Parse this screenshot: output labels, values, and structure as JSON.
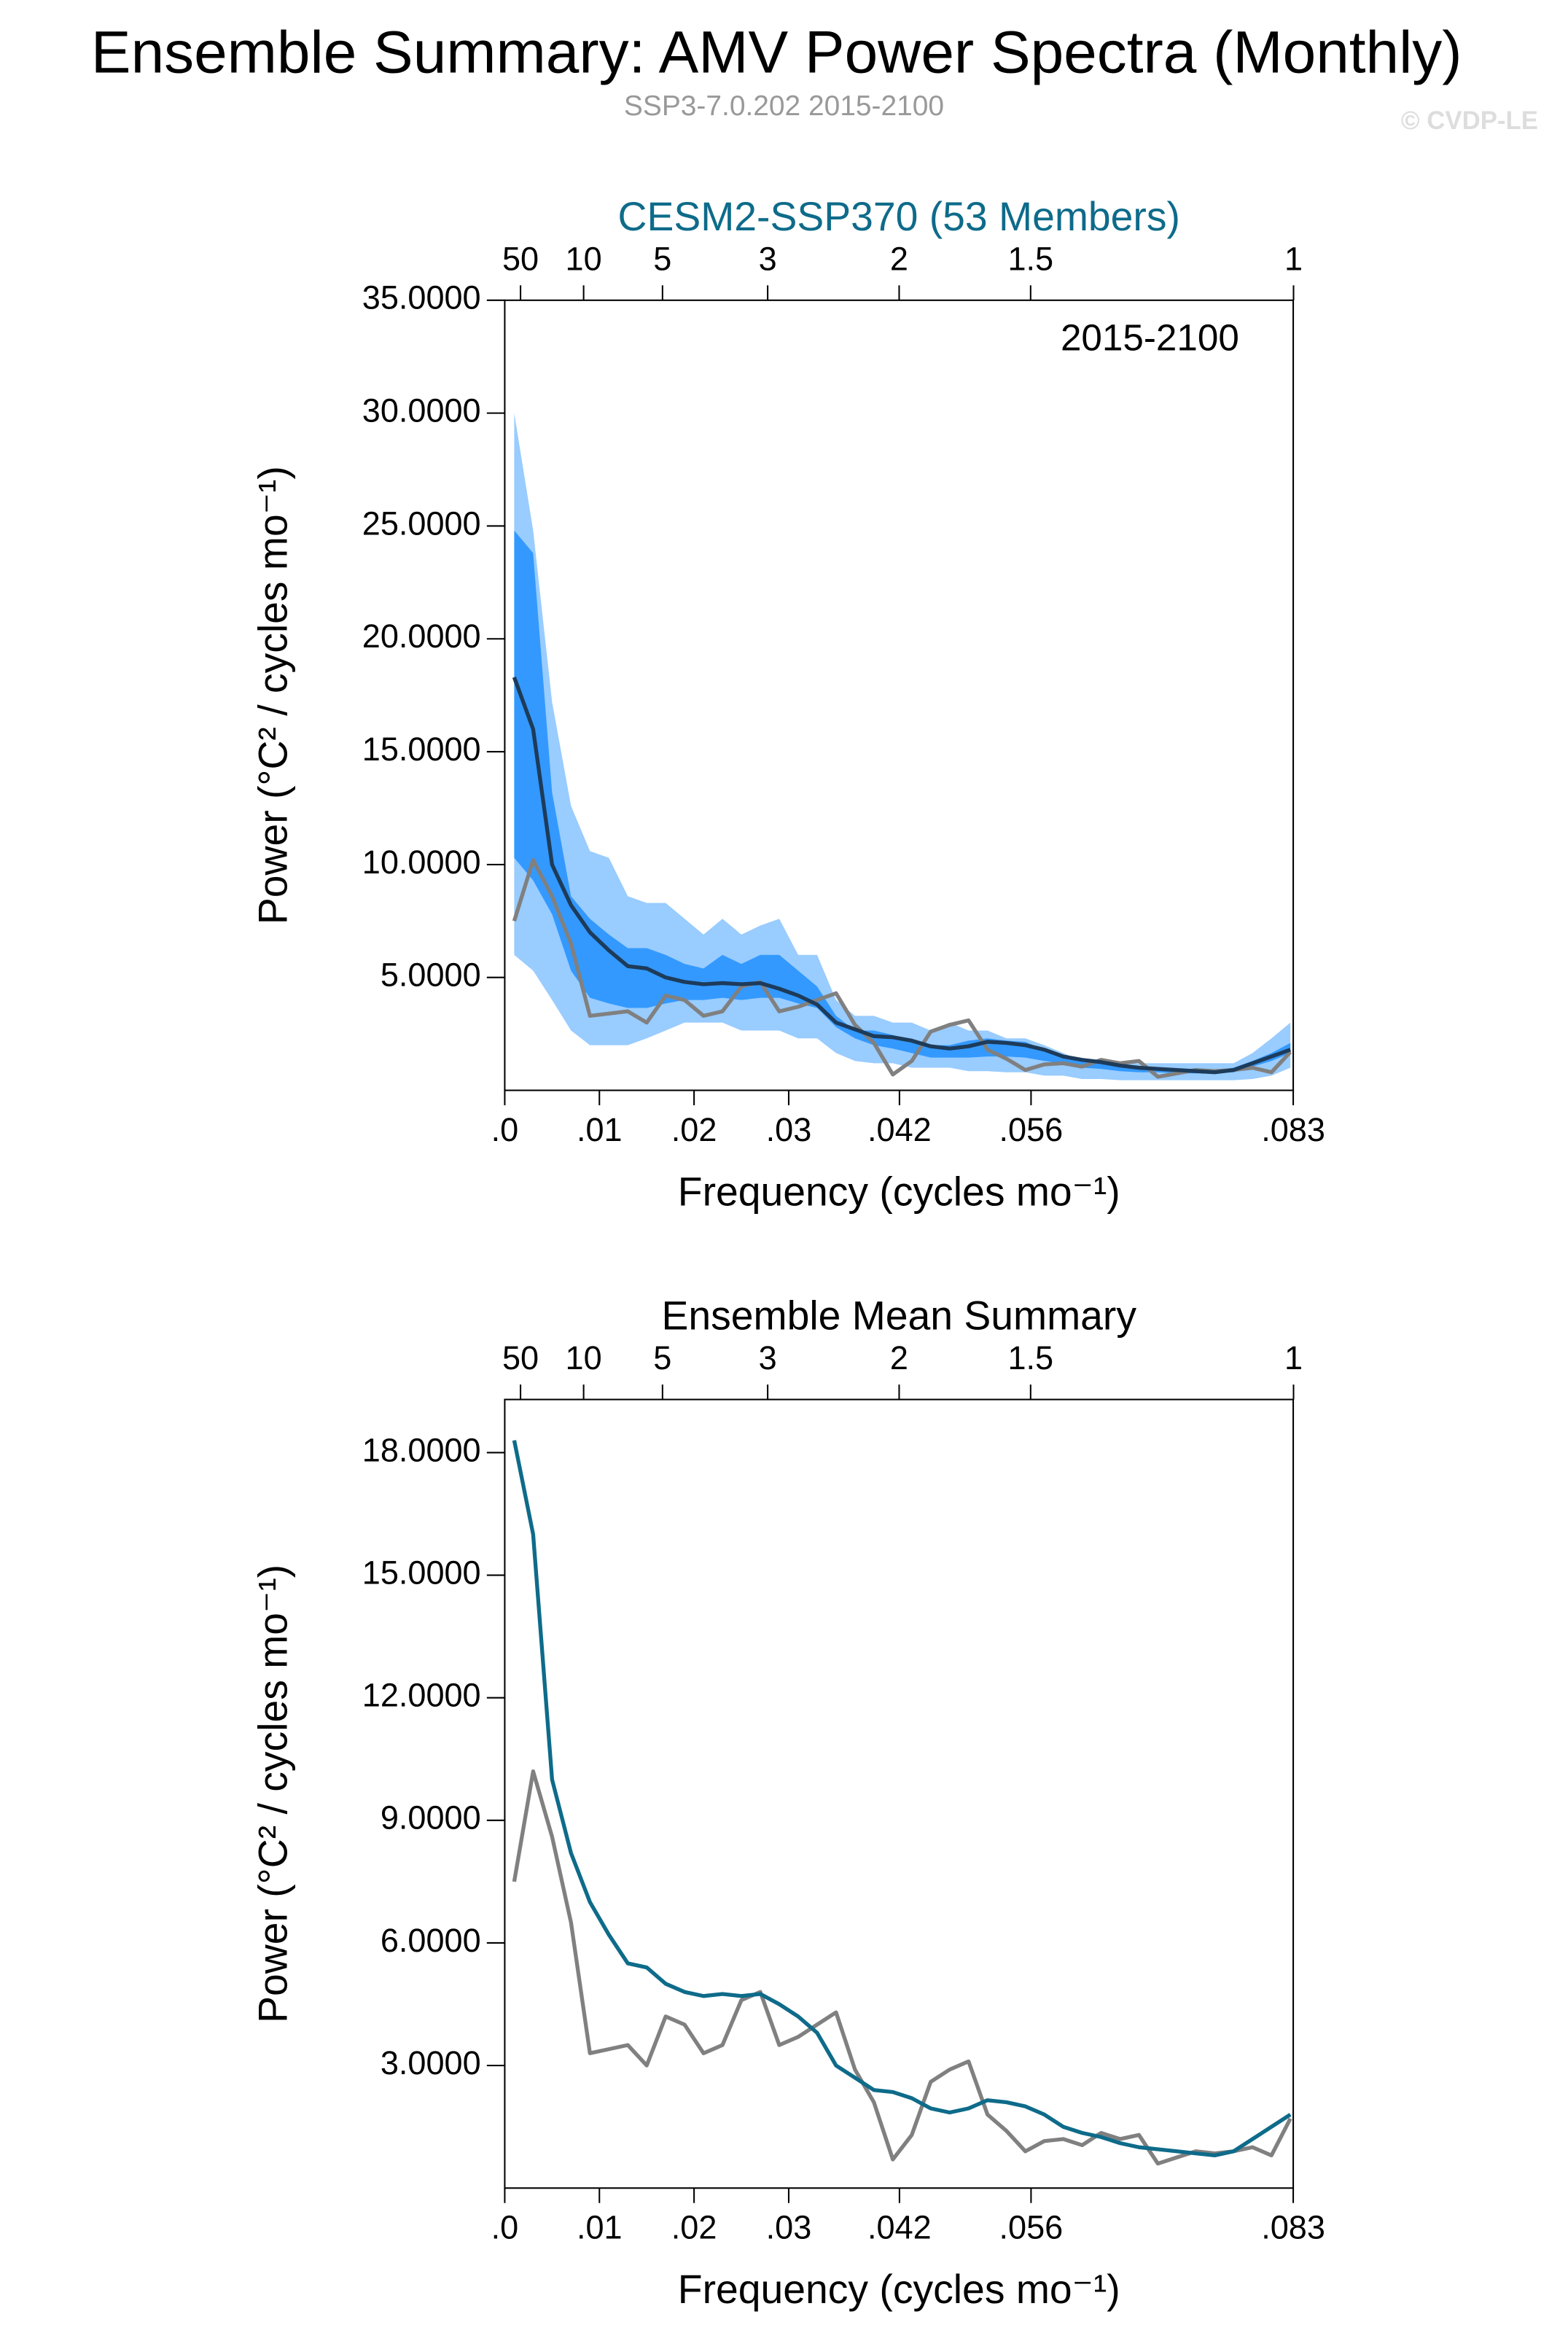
{
  "title": "Ensemble Summary: AMV Power Spectra (Monthly)",
  "subtitle": "SSP3-7.0.202 2015-2100",
  "credit": "© CVDP-LE",
  "chart_data": [
    {
      "type": "line",
      "title": "CESM2-SSP370 (53 Members)",
      "title_color": "#0e6b8a",
      "annotation": "2015-2100",
      "xlabel": "Frequency (cycles mo⁻¹)",
      "ylabel": "Power (°C² / cycles mo⁻¹)",
      "xlim": [
        0,
        0.0833
      ],
      "ylim": [
        0,
        35
      ],
      "xticks": [
        {
          "value": 0,
          "label": ".0"
        },
        {
          "value": 0.01,
          "label": ".01"
        },
        {
          "value": 0.02,
          "label": ".02"
        },
        {
          "value": 0.03,
          "label": ".03"
        },
        {
          "value": 0.0417,
          "label": ".042"
        },
        {
          "value": 0.0556,
          "label": ".056"
        },
        {
          "value": 0.0833,
          "label": ".083"
        }
      ],
      "x2ticks": [
        {
          "value": 0.001667,
          "label": "50"
        },
        {
          "value": 0.008333,
          "label": "10"
        },
        {
          "value": 0.016667,
          "label": "5"
        },
        {
          "value": 0.027778,
          "label": "3"
        },
        {
          "value": 0.041667,
          "label": "2"
        },
        {
          "value": 0.055556,
          "label": "1.5"
        },
        {
          "value": 0.083333,
          "label": "1"
        }
      ],
      "yticks": [
        {
          "value": 5,
          "label": "5.0000"
        },
        {
          "value": 10,
          "label": "10.0000"
        },
        {
          "value": 15,
          "label": "15.0000"
        },
        {
          "value": 20,
          "label": "20.0000"
        },
        {
          "value": 25,
          "label": "25.0000"
        },
        {
          "value": 30,
          "label": "30.0000"
        },
        {
          "value": 35,
          "label": "35.0000"
        }
      ],
      "x": [
        0.001,
        0.003,
        0.005,
        0.007,
        0.009,
        0.011,
        0.013,
        0.015,
        0.017,
        0.019,
        0.021,
        0.023,
        0.025,
        0.027,
        0.029,
        0.031,
        0.033,
        0.035,
        0.037,
        0.039,
        0.041,
        0.043,
        0.045,
        0.047,
        0.049,
        0.051,
        0.053,
        0.055,
        0.057,
        0.059,
        0.061,
        0.063,
        0.065,
        0.067,
        0.069,
        0.071,
        0.073,
        0.075,
        0.077,
        0.079,
        0.081,
        0.083
      ],
      "bands": [
        {
          "color": "#99ccff",
          "upper": [
            30.0,
            24.8,
            17.2,
            12.6,
            10.6,
            10.3,
            8.6,
            8.3,
            8.3,
            7.6,
            6.9,
            7.6,
            6.9,
            7.3,
            7.6,
            6.0,
            6.0,
            4.0,
            3.3,
            3.3,
            3.0,
            3.0,
            2.65,
            3.0,
            2.65,
            2.65,
            2.3,
            2.3,
            2.0,
            1.65,
            1.3,
            1.3,
            1.2,
            1.2,
            1.2,
            1.2,
            1.2,
            1.2,
            1.2,
            1.65,
            2.3,
            3.0
          ],
          "lower": [
            6.0,
            5.3,
            4.0,
            2.65,
            2.0,
            2.0,
            2.0,
            2.3,
            2.65,
            3.0,
            3.0,
            3.0,
            2.65,
            2.65,
            2.65,
            2.3,
            2.3,
            1.65,
            1.3,
            1.2,
            1.2,
            1.0,
            1.0,
            1.0,
            0.85,
            0.85,
            0.8,
            0.8,
            0.65,
            0.65,
            0.5,
            0.5,
            0.45,
            0.45,
            0.45,
            0.45,
            0.45,
            0.45,
            0.45,
            0.5,
            0.65,
            1.0
          ]
        },
        {
          "color": "#3399ff",
          "upper": [
            24.8,
            23.8,
            13.2,
            8.6,
            7.6,
            6.9,
            6.3,
            6.3,
            6.0,
            5.6,
            5.4,
            6.0,
            5.6,
            6.0,
            6.0,
            5.3,
            4.6,
            3.3,
            2.65,
            2.65,
            2.45,
            2.2,
            2.0,
            2.0,
            2.2,
            2.3,
            2.2,
            2.15,
            1.8,
            1.5,
            1.3,
            1.2,
            1.1,
            1.05,
            1.0,
            0.95,
            0.95,
            0.9,
            1.0,
            1.3,
            1.65,
            2.1
          ],
          "lower": [
            10.3,
            9.3,
            7.8,
            5.3,
            4.1,
            3.85,
            3.65,
            3.65,
            3.85,
            4.0,
            4.0,
            4.1,
            4.0,
            4.1,
            4.1,
            3.85,
            3.65,
            2.8,
            2.3,
            2.0,
            1.85,
            1.65,
            1.45,
            1.45,
            1.45,
            1.5,
            1.5,
            1.45,
            1.3,
            1.2,
            1.0,
            0.95,
            0.85,
            0.8,
            0.8,
            0.75,
            0.75,
            0.75,
            0.8,
            1.05,
            1.3,
            1.65
          ]
        }
      ],
      "series": [
        {
          "color": "#808080",
          "values": [
            7.5,
            10.2,
            8.6,
            6.5,
            3.3,
            3.4,
            3.5,
            3.0,
            4.2,
            4.0,
            3.3,
            3.5,
            4.6,
            4.8,
            3.5,
            3.7,
            4.0,
            4.3,
            2.9,
            2.1,
            0.7,
            1.3,
            2.6,
            2.9,
            3.1,
            1.8,
            1.4,
            0.9,
            1.15,
            1.2,
            1.05,
            1.35,
            1.2,
            1.3,
            0.6,
            0.75,
            0.9,
            0.85,
            0.9,
            1.0,
            0.8,
            1.7
          ]
        },
        {
          "color": "#1d3b5a",
          "values": [
            18.3,
            16.0,
            10.0,
            8.2,
            7.0,
            6.2,
            5.5,
            5.4,
            5.0,
            4.8,
            4.7,
            4.75,
            4.7,
            4.75,
            4.5,
            4.2,
            3.8,
            3.0,
            2.7,
            2.4,
            2.35,
            2.2,
            1.95,
            1.85,
            1.95,
            2.15,
            2.1,
            2.0,
            1.8,
            1.5,
            1.35,
            1.25,
            1.1,
            1.0,
            0.95,
            0.9,
            0.85,
            0.8,
            0.9,
            1.2,
            1.5,
            1.8
          ]
        }
      ]
    },
    {
      "type": "line",
      "title": "Ensemble Mean Summary",
      "title_color": "#000000",
      "xlabel": "Frequency (cycles mo⁻¹)",
      "ylabel": "Power (°C² / cycles mo⁻¹)",
      "xlim": [
        0,
        0.0833
      ],
      "ylim": [
        0,
        19.3
      ],
      "xticks": [
        {
          "value": 0,
          "label": ".0"
        },
        {
          "value": 0.01,
          "label": ".01"
        },
        {
          "value": 0.02,
          "label": ".02"
        },
        {
          "value": 0.03,
          "label": ".03"
        },
        {
          "value": 0.0417,
          "label": ".042"
        },
        {
          "value": 0.0556,
          "label": ".056"
        },
        {
          "value": 0.0833,
          "label": ".083"
        }
      ],
      "x2ticks": [
        {
          "value": 0.001667,
          "label": "50"
        },
        {
          "value": 0.008333,
          "label": "10"
        },
        {
          "value": 0.016667,
          "label": "5"
        },
        {
          "value": 0.027778,
          "label": "3"
        },
        {
          "value": 0.041667,
          "label": "2"
        },
        {
          "value": 0.055556,
          "label": "1.5"
        },
        {
          "value": 0.083333,
          "label": "1"
        }
      ],
      "yticks": [
        {
          "value": 3,
          "label": "3.0000"
        },
        {
          "value": 6,
          "label": "6.0000"
        },
        {
          "value": 9,
          "label": "9.0000"
        },
        {
          "value": 12,
          "label": "12.0000"
        },
        {
          "value": 15,
          "label": "15.0000"
        },
        {
          "value": 18,
          "label": "18.0000"
        }
      ],
      "x": [
        0.001,
        0.003,
        0.005,
        0.007,
        0.009,
        0.011,
        0.013,
        0.015,
        0.017,
        0.019,
        0.021,
        0.023,
        0.025,
        0.027,
        0.029,
        0.031,
        0.033,
        0.035,
        0.037,
        0.039,
        0.041,
        0.043,
        0.045,
        0.047,
        0.049,
        0.051,
        0.053,
        0.055,
        0.057,
        0.059,
        0.061,
        0.063,
        0.065,
        0.067,
        0.069,
        0.071,
        0.073,
        0.075,
        0.077,
        0.079,
        0.081,
        0.083
      ],
      "series": [
        {
          "color": "#808080",
          "values": [
            7.5,
            10.2,
            8.6,
            6.5,
            3.3,
            3.4,
            3.5,
            3.0,
            4.2,
            4.0,
            3.3,
            3.5,
            4.6,
            4.8,
            3.5,
            3.7,
            4.0,
            4.3,
            2.9,
            2.1,
            0.7,
            1.3,
            2.6,
            2.9,
            3.1,
            1.8,
            1.4,
            0.9,
            1.15,
            1.2,
            1.05,
            1.35,
            1.2,
            1.3,
            0.6,
            0.75,
            0.9,
            0.85,
            0.9,
            1.0,
            0.8,
            1.7
          ]
        },
        {
          "color": "#0e6b8a",
          "values": [
            18.3,
            16.0,
            10.0,
            8.2,
            7.0,
            6.2,
            5.5,
            5.4,
            5.0,
            4.8,
            4.7,
            4.75,
            4.7,
            4.75,
            4.5,
            4.2,
            3.8,
            3.0,
            2.7,
            2.4,
            2.35,
            2.2,
            1.95,
            1.85,
            1.95,
            2.15,
            2.1,
            2.0,
            1.8,
            1.5,
            1.35,
            1.25,
            1.1,
            1.0,
            0.95,
            0.9,
            0.85,
            0.8,
            0.9,
            1.2,
            1.5,
            1.8
          ]
        }
      ]
    }
  ]
}
